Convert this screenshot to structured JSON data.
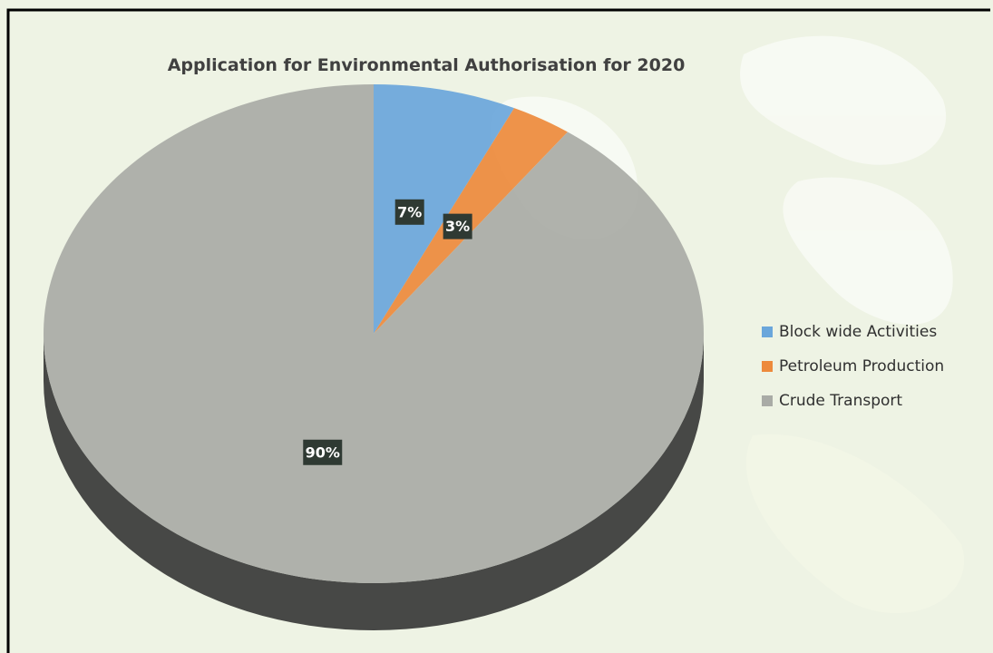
{
  "chart_data": {
    "type": "pie",
    "title": "Application for Environmental Authorisation for 2020",
    "categories": [
      "Block wide Activities",
      "Petroleum Production",
      "Crude Transport"
    ],
    "values": [
      7,
      3,
      90
    ],
    "value_labels": [
      "7%",
      "3%",
      "90%"
    ],
    "colors": [
      "#6aa6db",
      "#ed8a3c",
      "#a9aba6"
    ],
    "legend": "right"
  }
}
